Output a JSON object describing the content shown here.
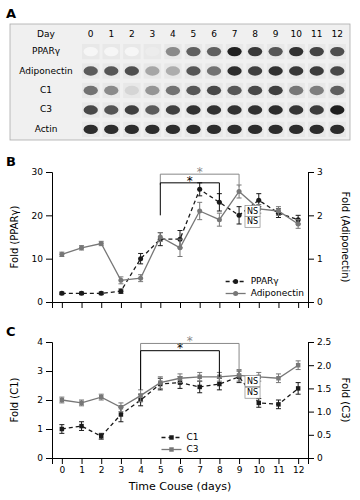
{
  "chart_data": [
    {
      "type": "heatmap",
      "title": "A",
      "xlabel": "Day",
      "categories": [
        "0",
        "1",
        "2",
        "3",
        "4",
        "5",
        "6",
        "7",
        "8",
        "9",
        "10",
        "11",
        "12"
      ],
      "series": [
        {
          "name": "PPARγ",
          "values": [
            0.04,
            0.04,
            0.04,
            0.08,
            0.5,
            0.68,
            0.68,
            0.95,
            0.85,
            0.72,
            0.88,
            0.8,
            0.75
          ]
        },
        {
          "name": "Adiponectin",
          "values": [
            0.7,
            0.72,
            0.75,
            0.38,
            0.35,
            0.72,
            0.6,
            0.9,
            0.82,
            0.88,
            0.85,
            0.83,
            0.78
          ]
        },
        {
          "name": "C1",
          "values": [
            0.6,
            0.5,
            0.18,
            0.45,
            0.6,
            0.72,
            0.78,
            0.72,
            0.78,
            0.82,
            0.58,
            0.55,
            0.68
          ]
        },
        {
          "name": "C3",
          "values": [
            0.78,
            0.73,
            0.82,
            0.7,
            0.82,
            0.88,
            0.88,
            0.88,
            0.88,
            0.9,
            0.86,
            0.83,
            0.96
          ]
        },
        {
          "name": "Actin",
          "values": [
            0.9,
            0.9,
            0.9,
            0.9,
            0.9,
            0.9,
            0.9,
            0.9,
            0.9,
            0.9,
            0.9,
            0.9,
            0.9
          ]
        }
      ]
    },
    {
      "type": "line",
      "title": "B",
      "x": [
        0,
        1,
        2,
        3,
        4,
        5,
        6,
        7,
        8,
        9,
        10,
        11,
        12
      ],
      "xlim": [
        -0.5,
        12.5
      ],
      "xticks": [
        0,
        1,
        2,
        3,
        4,
        5,
        6,
        7,
        8,
        9,
        10,
        11,
        12
      ],
      "tick_labels": "y",
      "ylabel": "Fold (PPARγ)",
      "y2label": "Fold (Adiponectin)",
      "ylim": [
        0,
        30
      ],
      "yticks": [
        0,
        10,
        20,
        30
      ],
      "y2lim": [
        0,
        3
      ],
      "y2ticks": [
        0,
        1,
        2,
        3
      ],
      "legend": "lower right",
      "series": [
        {
          "name": "PPARγ",
          "color": "#1a1a1a",
          "marker": "circle",
          "line_style": "dashed",
          "values": [
            2.0,
            2.0,
            2.0,
            2.5,
            10.0,
            14.5,
            14.5,
            26.0,
            23.0,
            20.0,
            23.5,
            20.5,
            19.0
          ],
          "errors": [
            0.3,
            0.3,
            0.3,
            0.5,
            1.2,
            1.5,
            2.0,
            1.5,
            2.0,
            2.0,
            1.5,
            1.0,
            1.0
          ]
        },
        {
          "name": "Adiponectin",
          "color": "#777777",
          "marker": "circle",
          "line_style": "solid",
          "axis": "y2",
          "values": [
            1.1,
            1.25,
            1.35,
            0.5,
            0.55,
            1.5,
            1.25,
            2.1,
            1.9,
            2.55,
            2.15,
            2.1,
            1.8
          ],
          "errors": [
            0.05,
            0.05,
            0.05,
            0.08,
            0.08,
            0.1,
            0.2,
            0.2,
            0.15,
            0.15,
            0.1,
            0.1,
            0.1
          ]
        }
      ],
      "annotations": [
        {
          "text": "*",
          "x": 7,
          "y": 30,
          "color": "#888888",
          "bracket": {
            "x": [
              5,
              9
            ],
            "y": 29.5,
            "ends": [
              27.0,
              26.5
            ]
          }
        },
        {
          "text": "*",
          "x": 6.5,
          "y": 28,
          "color": "#000000",
          "bracket": {
            "x": [
              5,
              8
            ],
            "y": 27.5,
            "ends": [
              20.0,
              23.5
            ]
          }
        },
        {
          "text": "NS",
          "x": 9.3,
          "y": 21.0
        },
        {
          "text": "NS",
          "x": 9.3,
          "y": 18.5
        }
      ]
    },
    {
      "type": "line",
      "title": "C",
      "x": [
        0,
        1,
        2,
        3,
        4,
        5,
        6,
        7,
        8,
        9,
        10,
        11,
        12
      ],
      "xlim": [
        -0.5,
        12.5
      ],
      "xticks": [
        0,
        1,
        2,
        3,
        4,
        5,
        6,
        7,
        8,
        9,
        10,
        11,
        12
      ],
      "xlabel": "Time Couse (days)",
      "ylabel": "Fold (C1)",
      "y2label": "Fold (C3)",
      "ylim": [
        0,
        4.0
      ],
      "yticks": [
        0,
        1,
        2,
        3,
        4
      ],
      "y2lim": [
        0,
        2.5
      ],
      "y2ticks": [
        0,
        0.5,
        {
          "value": 1.0,
          "label": "1.0"
        },
        1.5,
        {
          "value": 2.0,
          "label": "2.0"
        },
        2.5
      ],
      "legend": "lower center",
      "series": [
        {
          "name": "C1",
          "color": "#1a1a1a",
          "marker": "square",
          "line_style": "dashed",
          "values": [
            1.0,
            1.1,
            0.75,
            1.5,
            2.0,
            2.55,
            2.6,
            2.45,
            2.55,
            2.8,
            1.9,
            1.85,
            2.4
          ],
          "errors": [
            0.15,
            0.15,
            0.1,
            0.25,
            0.2,
            0.2,
            0.2,
            0.2,
            0.2,
            0.2,
            0.15,
            0.15,
            0.2
          ]
        },
        {
          "name": "C3",
          "color": "#777777",
          "marker": "square",
          "line_style": "solid",
          "axis": "y2",
          "values": [
            1.25,
            1.1875,
            1.3125,
            1.09375,
            1.34375,
            1.625,
            1.71875,
            1.75,
            1.75,
            1.78125,
            1.75,
            1.71875,
            2.0
          ],
          "errors": [
            0.0625,
            0.0625,
            0.0625,
            0.09375,
            0.125,
            0.125,
            0.09375,
            0.09375,
            0.09375,
            0.125,
            0.09375,
            0.09375,
            0.09375
          ]
        }
      ],
      "annotations": [
        {
          "text": "*",
          "x": 6.5,
          "y": 4.03,
          "color": "#888888",
          "bracket": {
            "x": [
              4,
              9
            ],
            "y": 3.95,
            "ends": [
              2.35,
              2.85
            ]
          }
        },
        {
          "text": "*",
          "x": 6.0,
          "y": 3.78,
          "color": "#000000",
          "bracket": {
            "x": [
              4,
              8
            ],
            "y": 3.7,
            "ends": [
              2.35,
              2.8
            ]
          }
        },
        {
          "text": "NS",
          "x": 9.3,
          "y": 2.65
        },
        {
          "text": "NS",
          "x": 9.3,
          "y": 2.25
        }
      ]
    }
  ]
}
